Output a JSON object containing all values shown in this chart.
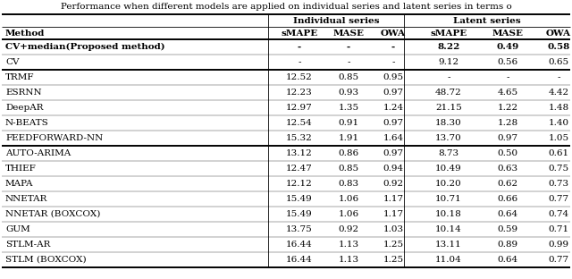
{
  "title": "Performance when different models are applied on individual series and latent series in terms o",
  "rows": [
    {
      "method": "CV+median(Proposed method)",
      "ind_smape": "-",
      "ind_mase": "-",
      "ind_owa": "-",
      "lat_smape": "8.22",
      "lat_mase": "0.49",
      "lat_owa": "0.58",
      "bold": true,
      "group": 0
    },
    {
      "method": "CV",
      "ind_smape": "-",
      "ind_mase": "-",
      "ind_owa": "-",
      "lat_smape": "9.12",
      "lat_mase": "0.56",
      "lat_owa": "0.65",
      "bold": false,
      "group": 0
    },
    {
      "method": "TRMF",
      "ind_smape": "12.52",
      "ind_mase": "0.85",
      "ind_owa": "0.95",
      "lat_smape": "-",
      "lat_mase": "-",
      "lat_owa": "-",
      "bold": false,
      "group": 1
    },
    {
      "method": "ESRNN",
      "ind_smape": "12.23",
      "ind_mase": "0.93",
      "ind_owa": "0.97",
      "lat_smape": "48.72",
      "lat_mase": "4.65",
      "lat_owa": "4.42",
      "bold": false,
      "group": 1
    },
    {
      "method": "DeepAR",
      "ind_smape": "12.97",
      "ind_mase": "1.35",
      "ind_owa": "1.24",
      "lat_smape": "21.15",
      "lat_mase": "1.22",
      "lat_owa": "1.48",
      "bold": false,
      "group": 1
    },
    {
      "method": "N-BEATS",
      "ind_smape": "12.54",
      "ind_mase": "0.91",
      "ind_owa": "0.97",
      "lat_smape": "18.30",
      "lat_mase": "1.28",
      "lat_owa": "1.40",
      "bold": false,
      "group": 1
    },
    {
      "method": "FEEDFORWARD-NN",
      "ind_smape": "15.32",
      "ind_mase": "1.91",
      "ind_owa": "1.64",
      "lat_smape": "13.70",
      "lat_mase": "0.97",
      "lat_owa": "1.05",
      "bold": false,
      "group": 1
    },
    {
      "method": "AUTO-ARIMA",
      "ind_smape": "13.12",
      "ind_mase": "0.86",
      "ind_owa": "0.97",
      "lat_smape": "8.73",
      "lat_mase": "0.50",
      "lat_owa": "0.61",
      "bold": false,
      "group": 2
    },
    {
      "method": "THIEF",
      "ind_smape": "12.47",
      "ind_mase": "0.85",
      "ind_owa": "0.94",
      "lat_smape": "10.49",
      "lat_mase": "0.63",
      "lat_owa": "0.75",
      "bold": false,
      "group": 2
    },
    {
      "method": "MAPA",
      "ind_smape": "12.12",
      "ind_mase": "0.83",
      "ind_owa": "0.92",
      "lat_smape": "10.20",
      "lat_mase": "0.62",
      "lat_owa": "0.73",
      "bold": false,
      "group": 2
    },
    {
      "method": "NNETAR",
      "ind_smape": "15.49",
      "ind_mase": "1.06",
      "ind_owa": "1.17",
      "lat_smape": "10.71",
      "lat_mase": "0.66",
      "lat_owa": "0.77",
      "bold": false,
      "group": 2
    },
    {
      "method": "NNETAR (BOXCOX)",
      "ind_smape": "15.49",
      "ind_mase": "1.06",
      "ind_owa": "1.17",
      "lat_smape": "10.18",
      "lat_mase": "0.64",
      "lat_owa": "0.74",
      "bold": false,
      "group": 2
    },
    {
      "method": "GUM",
      "ind_smape": "13.75",
      "ind_mase": "0.92",
      "ind_owa": "1.03",
      "lat_smape": "10.14",
      "lat_mase": "0.59",
      "lat_owa": "0.71",
      "bold": false,
      "group": 2
    },
    {
      "method": "STLM-AR",
      "ind_smape": "16.44",
      "ind_mase": "1.13",
      "ind_owa": "1.25",
      "lat_smape": "13.11",
      "lat_mase": "0.89",
      "lat_owa": "0.99",
      "bold": false,
      "group": 2
    },
    {
      "method": "STLM (BOXCOX)",
      "ind_smape": "16.44",
      "ind_mase": "1.13",
      "ind_owa": "1.25",
      "lat_smape": "11.04",
      "lat_mase": "0.64",
      "lat_owa": "0.77",
      "bold": false,
      "group": 2
    }
  ],
  "font_size": 7.5,
  "title_font_size": 7.5,
  "bg_color": "#ffffff",
  "lw_thick": 1.4,
  "lw_thin": 0.6,
  "lw_row": 0.25
}
